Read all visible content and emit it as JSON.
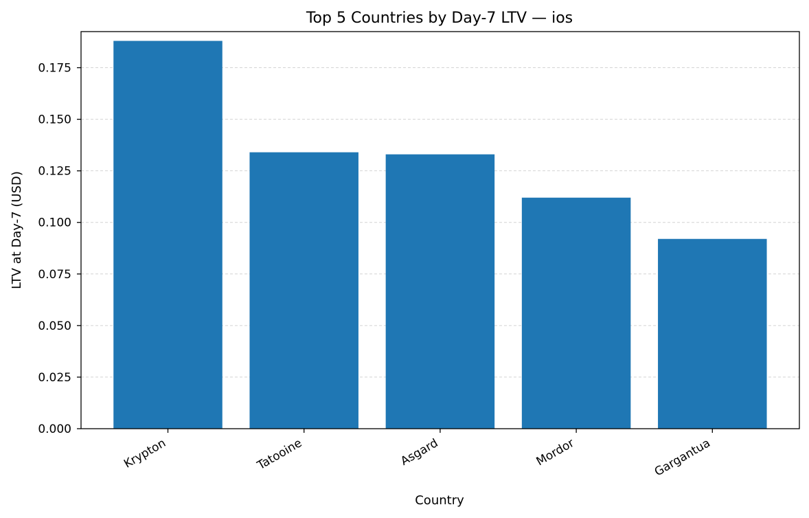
{
  "chart_data": {
    "type": "bar",
    "title": "Top 5 Countries by Day-7 LTV — ios",
    "xlabel": "Country",
    "ylabel": "LTV at Day-7 (USD)",
    "categories": [
      "Krypton",
      "Tatooine",
      "Asgard",
      "Mordor",
      "Gargantua"
    ],
    "values": [
      0.188,
      0.134,
      0.133,
      0.112,
      0.092
    ],
    "ylim": [
      0,
      0.1925
    ],
    "yticks": [
      "0.000",
      "0.025",
      "0.050",
      "0.075",
      "0.100",
      "0.125",
      "0.150",
      "0.175"
    ],
    "ytick_values": [
      0,
      0.025,
      0.05,
      0.075,
      0.1,
      0.125,
      0.15,
      0.175
    ],
    "grid": "y-axis dashed",
    "bar_color": "#1f77b4",
    "xtick_rotation": 30
  }
}
